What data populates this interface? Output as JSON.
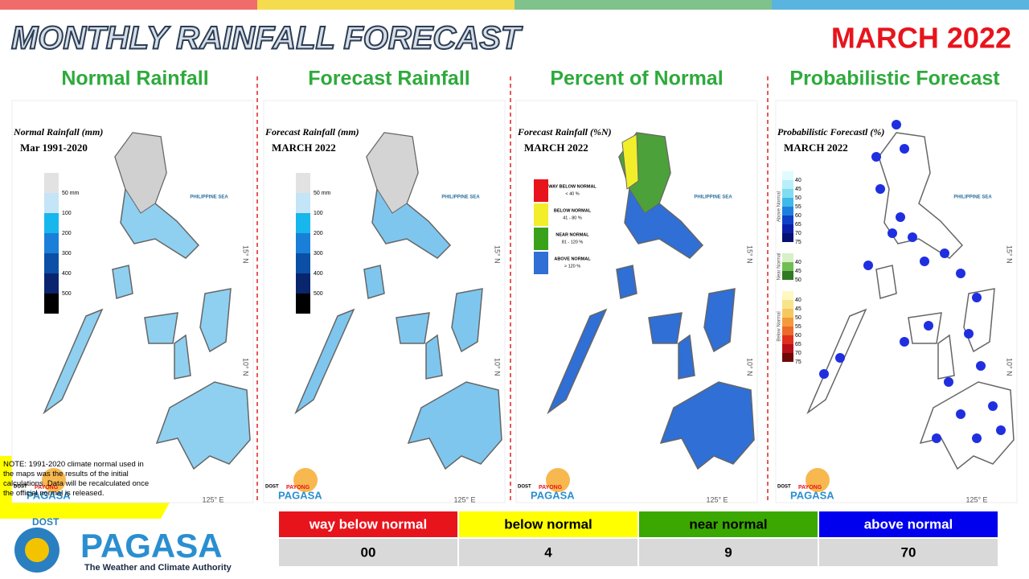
{
  "header": {
    "title": "MONTHLY RAINFALL FORECAST",
    "date": "MARCH 2022"
  },
  "panels": [
    {
      "heading": "Normal Rainfall",
      "map_title": "Normal Rainfall (mm)",
      "map_subtitle": "Mar 1991-2020",
      "legend": [
        "50 mm",
        "100",
        "200",
        "300",
        "400",
        "500"
      ]
    },
    {
      "heading": "Forecast Rainfall",
      "map_title": "Forecast Rainfall (mm)",
      "map_subtitle": "MARCH 2022",
      "legend": [
        "50 mm",
        "100",
        "200",
        "300",
        "400",
        "500"
      ]
    },
    {
      "heading": "Percent of Normal",
      "map_title": "Forecast Rainfall (%N)",
      "map_subtitle": "MARCH 2022",
      "legend": [
        {
          "label": "WAY BELOW NORMAL",
          "range": "< 40 %"
        },
        {
          "label": "BELOW NORMAL",
          "range": "41 - 80 %"
        },
        {
          "label": "NEAR NORMAL",
          "range": "81 - 120 %"
        },
        {
          "label": "ABOVE NORMAL",
          "range": "> 120 %"
        }
      ]
    },
    {
      "heading": "Probabilistic Forecast",
      "map_title": "Probabilistic Forecastl (%)",
      "map_subtitle": "MARCH 2022",
      "legend_groups": [
        {
          "name": "Above Normal",
          "ticks": [
            "40",
            "45",
            "50",
            "55",
            "60",
            "65",
            "70",
            "75"
          ]
        },
        {
          "name": "Near Normal",
          "ticks": [
            "40",
            "45",
            "50"
          ]
        },
        {
          "name": "Below Normal",
          "ticks": [
            "40",
            "45",
            "50",
            "55",
            "60",
            "65",
            "70",
            "75"
          ]
        }
      ]
    }
  ],
  "map_labels": {
    "sea": "PHILIPPINE SEA",
    "lon": "125° E",
    "lat_mid": "15° N",
    "lat_low": "10° N"
  },
  "badge": {
    "top": "DOST",
    "name": "PAYONG",
    "brand": "PAGASA"
  },
  "note": "NOTE: 1991-2020 climate normal used in the maps was the results of the initial calculations. Data will be recalculated once the official normal is released.",
  "summary": {
    "headers": [
      "way below normal",
      "below normal",
      "near normal",
      "above normal"
    ],
    "values": [
      "00",
      "4",
      "9",
      "70"
    ]
  },
  "logo": {
    "parent": "DOST",
    "name": "PAGASA",
    "tagline": "The Weather and Climate Authority"
  }
}
